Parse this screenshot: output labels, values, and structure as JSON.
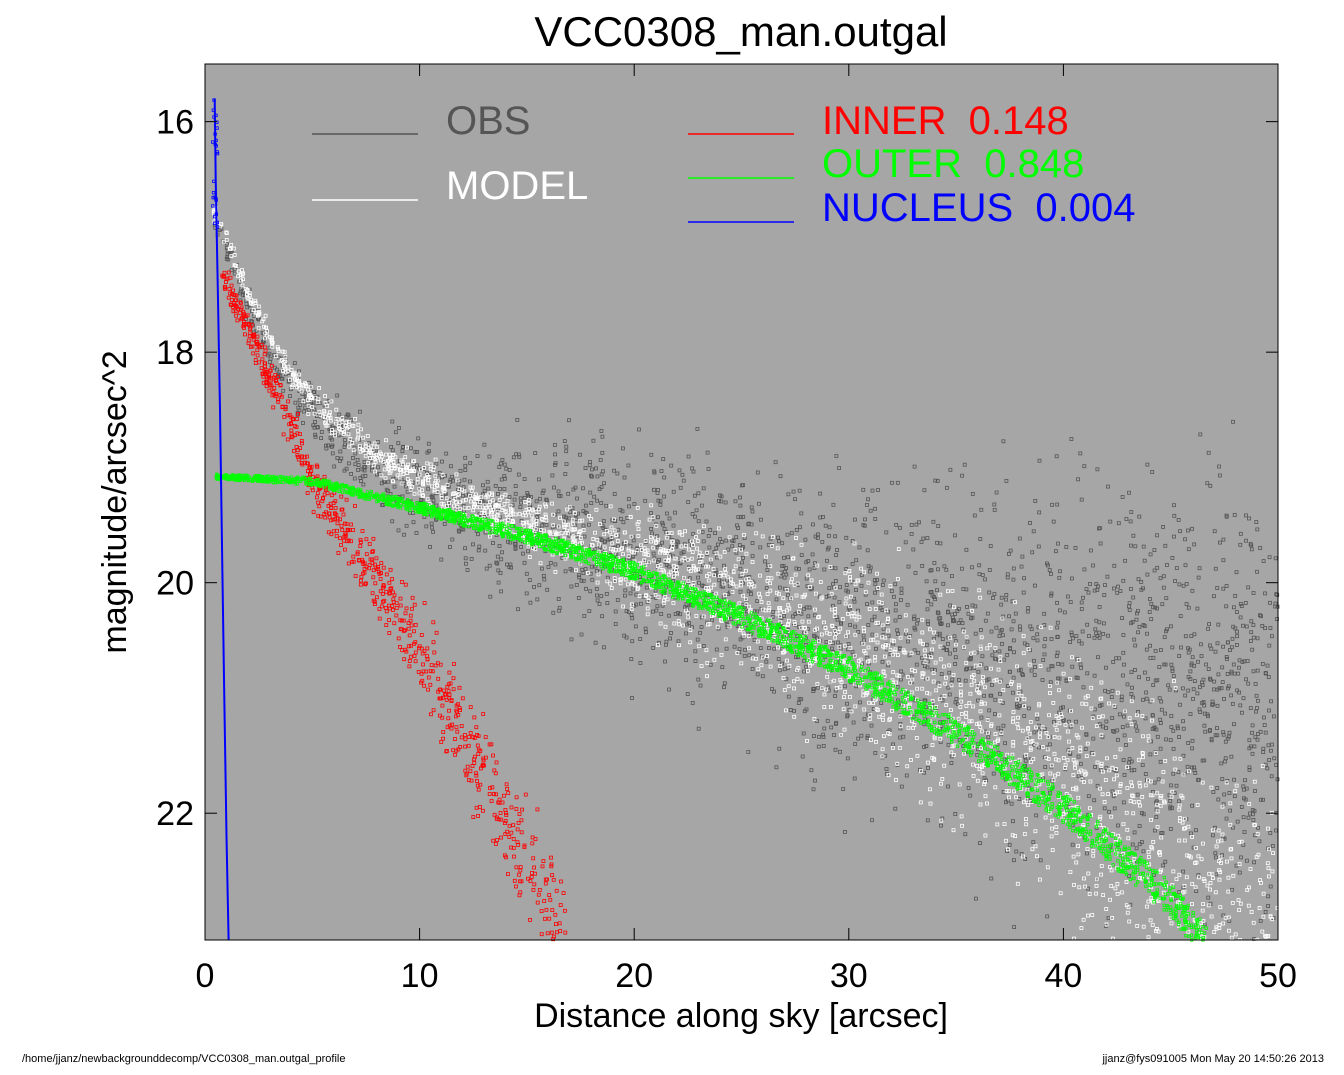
{
  "chart_data": {
    "type": "scatter",
    "title": "VCC0308_man.outgal",
    "xlabel": "Distance along sky [arcsec]",
    "ylabel": "magnitude/arcsec^2",
    "xlim": [
      0,
      50
    ],
    "ylim": [
      23.1,
      15.5
    ],
    "y_inverted": true,
    "x_ticks": [
      0,
      10,
      20,
      30,
      40,
      50
    ],
    "y_ticks": [
      16,
      18,
      20,
      22
    ],
    "background": "#a6a6a6",
    "grid": false,
    "series": [
      {
        "name": "OBS",
        "color": "#555555",
        "kind": "scatter",
        "approx_points": [
          [
            0.5,
            16.9
          ],
          [
            2,
            17.6
          ],
          [
            4,
            18.3
          ],
          [
            6,
            18.7
          ],
          [
            8,
            19.0
          ],
          [
            10,
            19.2
          ],
          [
            15,
            19.45
          ],
          [
            20,
            19.75
          ],
          [
            25,
            20.1
          ],
          [
            30,
            20.4
          ],
          [
            35,
            20.65
          ],
          [
            40,
            20.85
          ],
          [
            45,
            21.05
          ],
          [
            50,
            21.2
          ]
        ]
      },
      {
        "name": "MODEL",
        "color": "#ffffff",
        "kind": "scatter",
        "approx_points": [
          [
            0.5,
            16.8
          ],
          [
            2,
            17.5
          ],
          [
            4,
            18.2
          ],
          [
            6,
            18.6
          ],
          [
            8,
            18.9
          ],
          [
            10,
            19.1
          ],
          [
            12,
            19.3
          ],
          [
            15,
            19.5
          ],
          [
            20,
            19.8
          ],
          [
            25,
            20.2
          ],
          [
            30,
            20.6
          ],
          [
            35,
            21.1
          ],
          [
            40,
            21.7
          ],
          [
            45,
            22.4
          ],
          [
            50,
            23.1
          ]
        ]
      },
      {
        "name": "INNER",
        "value_label": "0.148",
        "color": "#ff0000",
        "kind": "scatter",
        "approx_points": [
          [
            1,
            17.4
          ],
          [
            3,
            18.2
          ],
          [
            5,
            19.1
          ],
          [
            7,
            19.7
          ],
          [
            10,
            20.6
          ],
          [
            12,
            21.3
          ],
          [
            14,
            22.1
          ],
          [
            16,
            22.8
          ],
          [
            16.5,
            23.1
          ]
        ]
      },
      {
        "name": "OUTER",
        "value_label": "0.848",
        "color": "#00ff00",
        "kind": "scatter",
        "approx_points": [
          [
            0.5,
            19.08
          ],
          [
            5,
            19.12
          ],
          [
            10,
            19.35
          ],
          [
            15,
            19.6
          ],
          [
            20,
            19.9
          ],
          [
            25,
            20.3
          ],
          [
            30,
            20.75
          ],
          [
            35,
            21.3
          ],
          [
            40,
            21.95
          ],
          [
            45,
            22.75
          ],
          [
            46.5,
            23.1
          ]
        ]
      },
      {
        "name": "NUCLEUS",
        "value_label": "0.004",
        "color": "#0000ff",
        "kind": "line",
        "approx_points": [
          [
            0.45,
            15.8
          ],
          [
            0.5,
            16.5
          ],
          [
            0.6,
            17.5
          ],
          [
            0.7,
            18.5
          ],
          [
            0.8,
            19.8
          ],
          [
            0.9,
            21.0
          ],
          [
            1.0,
            22.2
          ],
          [
            1.1,
            23.1
          ]
        ]
      }
    ],
    "legend_placement": "top"
  },
  "legend": {
    "obs_label": "OBS",
    "model_label": "MODEL",
    "inner_label": "INNER  0.148",
    "outer_label": "OUTER  0.848",
    "nucleus_label": "NUCLEUS  0.004"
  },
  "footer": {
    "left": "/home/jjanz/newbackgrounddecomp/VCC0308_man.outgal_profile",
    "right": "jjanz@fys091005  Mon May 20 14:50:26 2013"
  }
}
